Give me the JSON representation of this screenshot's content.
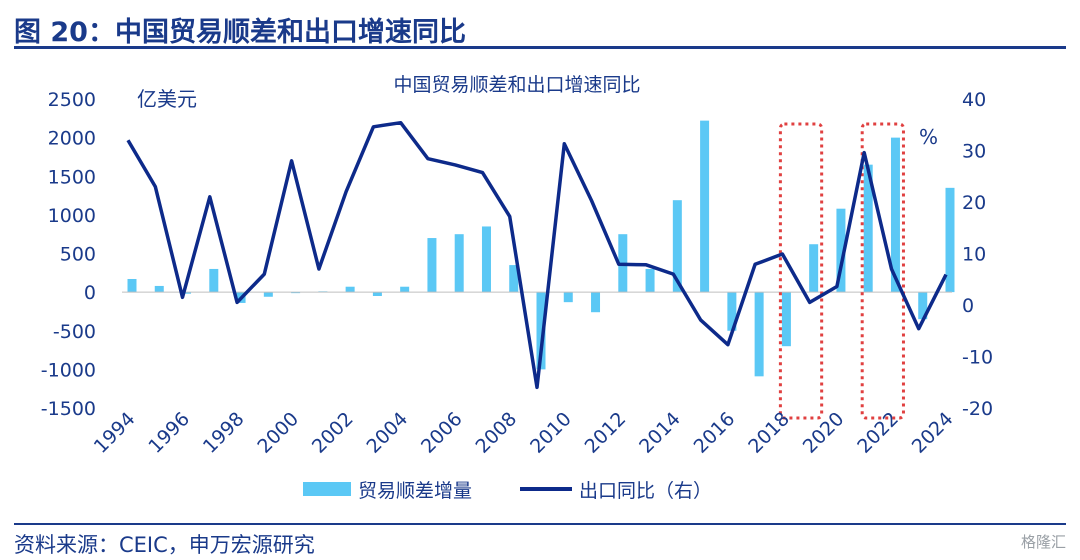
{
  "figure_title": "图 20：中国贸易顺差和出口增速同比",
  "source": "资料来源：CEIC，申万宏源研究",
  "watermark": "格隆汇",
  "colors": {
    "bar": "#5bc8f5",
    "line": "#0d2a8a",
    "text": "#1a3a8a",
    "highlight": "#e04040"
  },
  "chart_data": {
    "type": "bar+line",
    "title": "中国贸易顺差和出口增速同比",
    "left_unit": "亿美元",
    "right_unit": "%",
    "x": [
      1994,
      1995,
      1996,
      1997,
      1998,
      1999,
      2000,
      2001,
      2002,
      2003,
      2004,
      2005,
      2006,
      2007,
      2008,
      2009,
      2010,
      2011,
      2012,
      2013,
      2014,
      2015,
      2016,
      2017,
      2018,
      2019,
      2020,
      2021,
      2022,
      2023,
      2024
    ],
    "x_ticks": [
      "1994",
      "1996",
      "1998",
      "2000",
      "2002",
      "2004",
      "2006",
      "2008",
      "2010",
      "2012",
      "2014",
      "2016",
      "2018",
      "2020",
      "2022",
      "2024"
    ],
    "ylim_left": [
      -1500,
      2500
    ],
    "yticks_left": [
      "2500",
      "2000",
      "1500",
      "1000",
      "500",
      "0",
      "-500",
      "-1000",
      "-1500"
    ],
    "ylim_right": [
      -20,
      40
    ],
    "yticks_right": [
      "40",
      "30",
      "20",
      "10",
      "0",
      "-10",
      "-20"
    ],
    "series": [
      {
        "name": "贸易顺差增量",
        "type": "bar",
        "axis": "left",
        "values": [
          170,
          80,
          -20,
          300,
          -140,
          -60,
          -10,
          10,
          70,
          -50,
          70,
          700,
          750,
          850,
          350,
          -1000,
          -130,
          -260,
          750,
          300,
          1190,
          2220,
          -500,
          -1090,
          -700,
          620,
          1080,
          1650,
          2000,
          -350,
          1350
        ]
      },
      {
        "name": "出口同比（右）",
        "type": "line",
        "axis": "right",
        "values": [
          32,
          23,
          1.5,
          21,
          0.5,
          6,
          28,
          7,
          22,
          34.6,
          35.4,
          28.4,
          27.2,
          25.7,
          17.2,
          -16,
          31.3,
          20.3,
          7.9,
          7.8,
          6,
          -2.9,
          -7.7,
          7.9,
          9.9,
          0.5,
          3.6,
          29.6,
          7,
          -4.6,
          5.9
        ]
      }
    ],
    "highlights": [
      [
        2018,
        2019
      ],
      [
        2021,
        2022
      ]
    ],
    "legend_position": "bottom",
    "grid": false
  }
}
